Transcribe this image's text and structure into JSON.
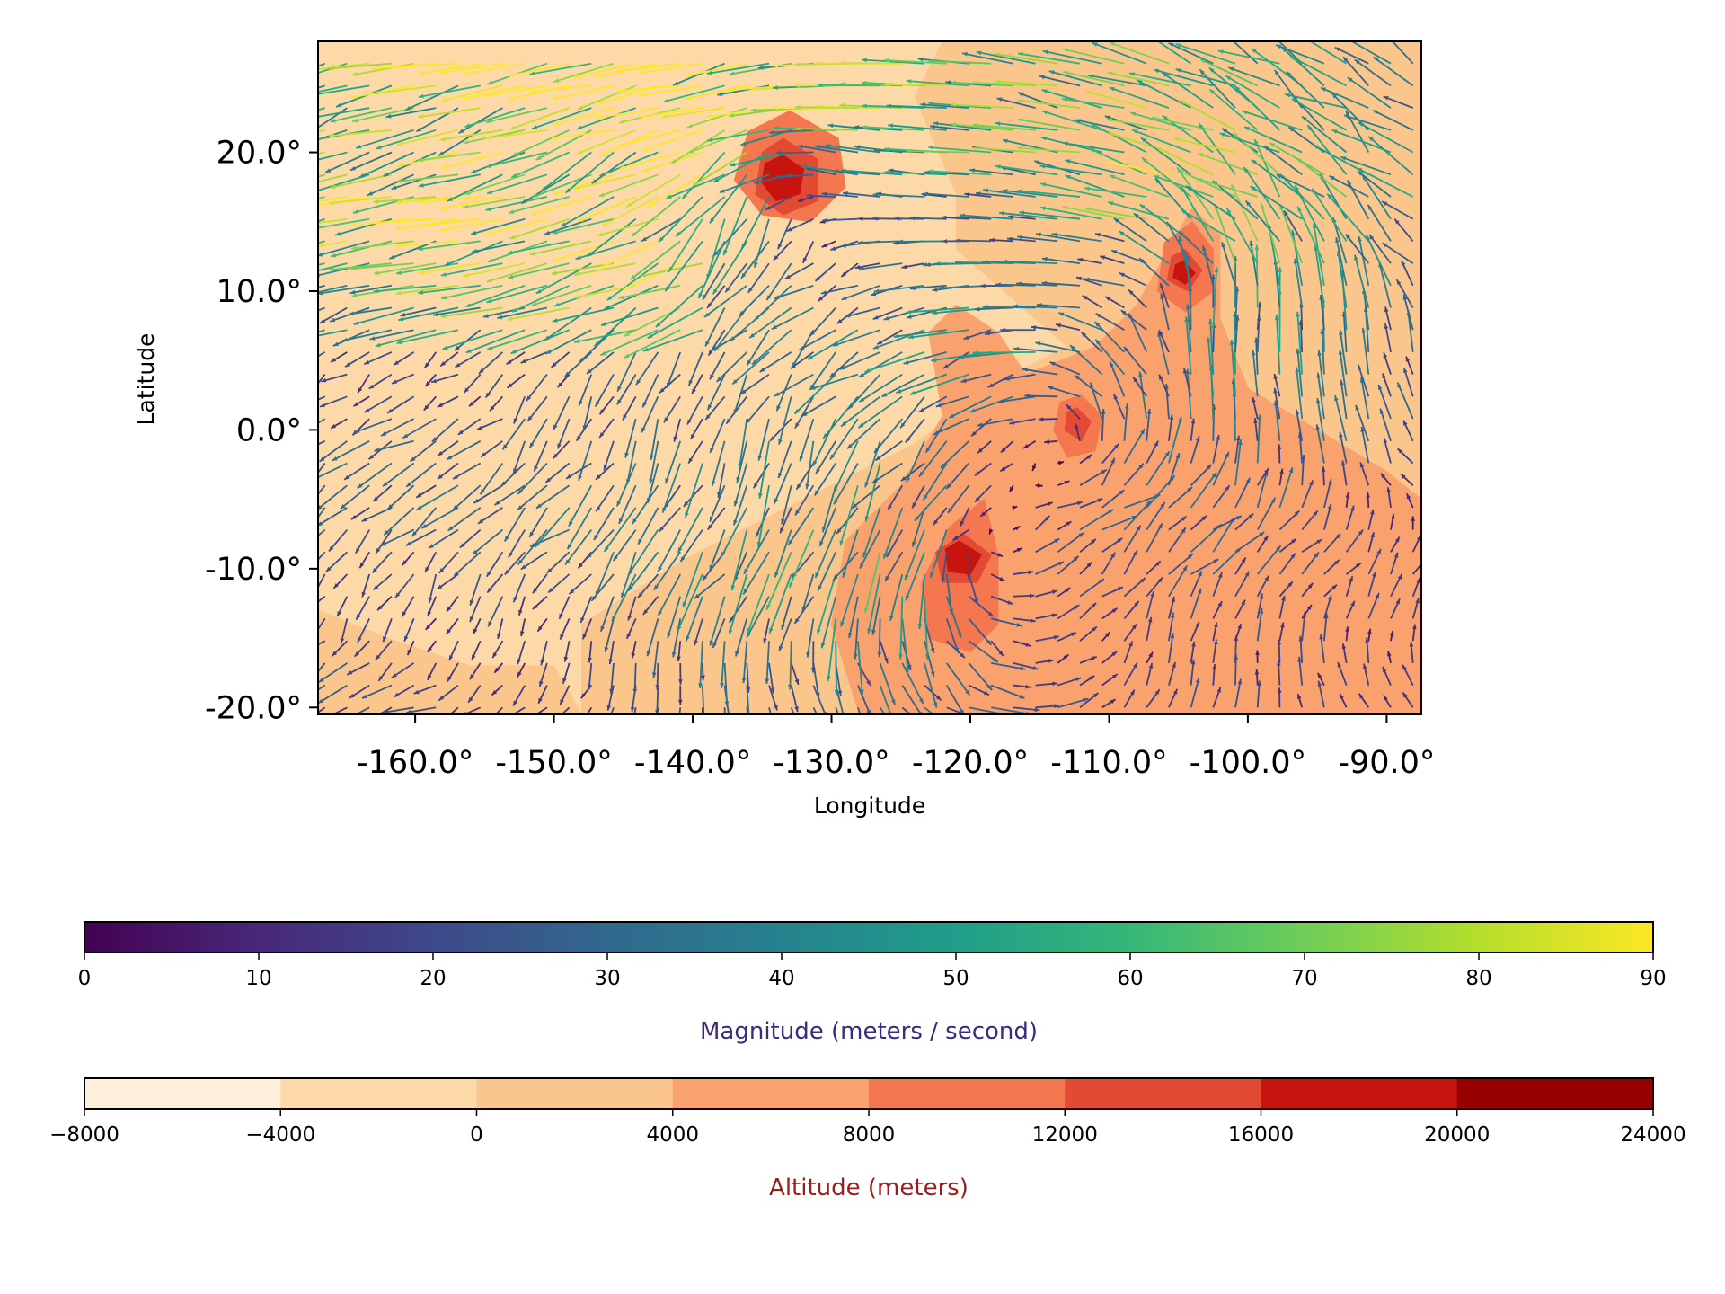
{
  "chart_data": {
    "type": "map",
    "xlabel": "Longitude",
    "ylabel": "Latitude",
    "xlim": [
      -167,
      -87.5
    ],
    "ylim": [
      -20.5,
      28
    ],
    "x_ticks": [
      {
        "value": -160,
        "label": "-160.0°"
      },
      {
        "value": -150,
        "label": "-150.0°"
      },
      {
        "value": -140,
        "label": "-140.0°"
      },
      {
        "value": -130,
        "label": "-130.0°"
      },
      {
        "value": -120,
        "label": "-120.0°"
      },
      {
        "value": -110,
        "label": "-110.0°"
      },
      {
        "value": -100,
        "label": "-100.0°"
      },
      {
        "value": -90,
        "label": "-90.0°"
      }
    ],
    "y_ticks": [
      {
        "value": 20,
        "label": "20.0°"
      },
      {
        "value": 10,
        "label": "10.0°"
      },
      {
        "value": 0,
        "label": "0.0°"
      },
      {
        "value": -10,
        "label": "-10.0°"
      },
      {
        "value": -20,
        "label": "-20.0°"
      }
    ],
    "altitude_regions": [
      {
        "level": 0,
        "color": "#fdd9a8",
        "points": [
          [
            -167,
            28
          ],
          [
            -122,
            28
          ],
          [
            -121,
            24
          ],
          [
            -116,
            25
          ],
          [
            -113,
            28
          ],
          [
            -87.5,
            28
          ],
          [
            -87.5,
            -20.5
          ],
          [
            -167,
            -20.5
          ]
        ]
      },
      {
        "level": 1,
        "color": "#fbc68c",
        "points": [
          [
            -122,
            28
          ],
          [
            -87.5,
            28
          ],
          [
            -87.5,
            -20.5
          ],
          [
            -148,
            -20.5
          ],
          [
            -148,
            -14
          ],
          [
            -140,
            -9
          ],
          [
            -130,
            -4
          ],
          [
            -124,
            -1
          ],
          [
            -120,
            2
          ],
          [
            -117,
            4
          ],
          [
            -113,
            6
          ],
          [
            -121,
            13
          ],
          [
            -121,
            17
          ],
          [
            -124,
            24
          ]
        ]
      },
      {
        "level": 1,
        "color": "#fbc68c",
        "points": [
          [
            -167,
            -20.5
          ],
          [
            -148,
            -20.5
          ],
          [
            -150,
            -17
          ],
          [
            -156,
            -17
          ],
          [
            -162,
            -15
          ],
          [
            -167,
            -13
          ]
        ]
      },
      {
        "level": 2,
        "color": "#f9a26d",
        "points": [
          [
            -128,
            -20.5
          ],
          [
            -87.5,
            -20.5
          ],
          [
            -87.5,
            -5
          ],
          [
            -90,
            -3
          ],
          [
            -95,
            0
          ],
          [
            -100,
            3
          ],
          [
            -102,
            8
          ],
          [
            -102,
            14
          ],
          [
            -104,
            16
          ],
          [
            -108,
            9
          ],
          [
            -111,
            6
          ],
          [
            -116,
            4
          ],
          [
            -118,
            7
          ],
          [
            -121,
            9
          ],
          [
            -123,
            7
          ],
          [
            -122,
            1
          ],
          [
            -125,
            -4
          ],
          [
            -129,
            -8
          ],
          [
            -130,
            -14
          ]
        ]
      },
      {
        "level": 3,
        "color": "#f4774f",
        "points": [
          [
            -121.5,
            -7
          ],
          [
            -119,
            -5
          ],
          [
            -118,
            -9
          ],
          [
            -118,
            -14
          ],
          [
            -120,
            -16
          ],
          [
            -123,
            -15
          ],
          [
            -123.5,
            -11
          ]
        ]
      },
      {
        "level": 3,
        "color": "#f4774f",
        "points": [
          [
            -133,
            23
          ],
          [
            -129.5,
            21
          ],
          [
            -129,
            17.5
          ],
          [
            -131.5,
            15
          ],
          [
            -135,
            15.5
          ],
          [
            -137,
            18
          ],
          [
            -136,
            21.5
          ]
        ]
      },
      {
        "level": 3,
        "color": "#f4774f",
        "points": [
          [
            -104,
            15
          ],
          [
            -102.5,
            13
          ],
          [
            -102.5,
            10
          ],
          [
            -104.5,
            8.5
          ],
          [
            -106.5,
            10
          ],
          [
            -106,
            13.5
          ]
        ]
      },
      {
        "level": 3,
        "color": "#f4774f",
        "points": [
          [
            -112,
            2.5
          ],
          [
            -110.5,
            1
          ],
          [
            -111,
            -1.5
          ],
          [
            -113,
            -2
          ],
          [
            -114,
            0
          ],
          [
            -113.5,
            2
          ]
        ]
      },
      {
        "level": 4,
        "color": "#e34a33",
        "points": [
          [
            -133.5,
            21
          ],
          [
            -131,
            19.5
          ],
          [
            -131,
            16.5
          ],
          [
            -133.5,
            15.5
          ],
          [
            -135.5,
            17
          ],
          [
            -135,
            20
          ]
        ]
      },
      {
        "level": 4,
        "color": "#e34a33",
        "points": [
          [
            -120.5,
            -7.5
          ],
          [
            -118.5,
            -9
          ],
          [
            -119.5,
            -11
          ],
          [
            -122,
            -11
          ],
          [
            -122.5,
            -8.8
          ]
        ]
      },
      {
        "level": 4,
        "color": "#e34a33",
        "points": [
          [
            -104.5,
            13
          ],
          [
            -103.3,
            11.5
          ],
          [
            -104.3,
            10
          ],
          [
            -105.8,
            10.8
          ],
          [
            -105.5,
            12.5
          ]
        ]
      },
      {
        "level": 4,
        "color": "#e34a33",
        "points": [
          [
            -112.3,
            1.6
          ],
          [
            -111.3,
            0.6
          ],
          [
            -112,
            -0.8
          ],
          [
            -113.2,
            0
          ],
          [
            -113,
            1.3
          ]
        ]
      },
      {
        "level": 5,
        "color": "#c8140e",
        "points": [
          [
            -133.5,
            19.8
          ],
          [
            -132,
            18.8
          ],
          [
            -132.3,
            17
          ],
          [
            -134,
            16.5
          ],
          [
            -135,
            17.8
          ],
          [
            -134.8,
            19.2
          ]
        ]
      },
      {
        "level": 5,
        "color": "#c8140e",
        "points": [
          [
            -120.8,
            -8
          ],
          [
            -119.2,
            -9
          ],
          [
            -120,
            -10.4
          ],
          [
            -121.6,
            -10.2
          ],
          [
            -121.8,
            -8.6
          ]
        ]
      },
      {
        "level": 5,
        "color": "#c8140e",
        "points": [
          [
            -104.6,
            12.2
          ],
          [
            -103.8,
            11.3
          ],
          [
            -104.5,
            10.5
          ],
          [
            -105.4,
            11
          ],
          [
            -105.2,
            11.9
          ]
        ]
      }
    ],
    "vectors": {
      "lon_range": [
        -166.5,
        -88
      ],
      "lat_range": [
        -20,
        27.5
      ],
      "step_deg": 1.6,
      "vmin": 0,
      "vmax": 90,
      "note_hidden": false
    },
    "colorbars": [
      {
        "name": "magnitude",
        "title": "Magnitude (meters / second)",
        "title_color": "#3b2a80",
        "type": "continuous",
        "range": [
          0,
          90
        ],
        "colors": [
          "#440154",
          "#482878",
          "#3e4989",
          "#31688e",
          "#26828e",
          "#1f9e89",
          "#35b779",
          "#6ece58",
          "#b5de2b",
          "#fde725"
        ],
        "ticks": [
          "0",
          "10",
          "20",
          "30",
          "40",
          "50",
          "60",
          "70",
          "80",
          "90"
        ]
      },
      {
        "name": "altitude",
        "title": "Altitude (meters)",
        "title_color": "#9b1c1c",
        "type": "discrete",
        "colors": [
          "#fff0dc",
          "#fdd9a8",
          "#fbc68c",
          "#f9a26d",
          "#f4774f",
          "#e34a33",
          "#c8140e",
          "#980000"
        ],
        "ticks": [
          "−8000",
          "−4000",
          "0",
          "4000",
          "8000",
          "12000",
          "16000",
          "20000",
          "24000"
        ]
      }
    ]
  }
}
